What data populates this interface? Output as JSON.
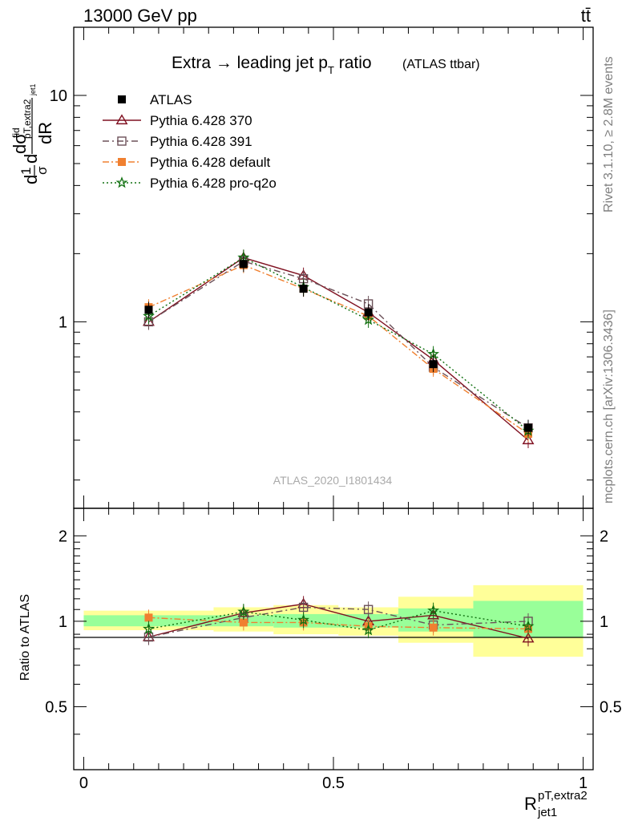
{
  "header": {
    "left": "13000 GeV pp",
    "right": "tt̄"
  },
  "side": {
    "top": "Rivet 3.1.10, ≥ 2.8M events",
    "bottom": "mcplots.cern.ch [arXiv:1306.3436]"
  },
  "watermark": "ATLAS_2020_I1801434",
  "colors": {
    "atlas": "#000000",
    "p370": "#7f1020",
    "p391": "#6b5058",
    "pdefault": "#f08030",
    "pq2o": "#107010",
    "band_inner": "#99ff99",
    "band_outer": "#ffff99"
  },
  "chart_data": [
    {
      "type": "scatter",
      "panel": "main",
      "title": "Extra → leading jet p",
      "title_sub": "T",
      "title_rest": " ratio",
      "title_note": "(ATLAS ttbar)",
      "ylabel": "dσ/dR",
      "yscale": "log",
      "ylim": [
        0.15,
        20
      ],
      "xlim": [
        -0.02,
        1.02
      ],
      "ytick_labels": [
        "1",
        "10"
      ],
      "x": [
        0.13,
        0.32,
        0.44,
        0.57,
        0.7,
        0.89
      ],
      "series": [
        {
          "name": "ATLAS",
          "values": [
            1.13,
            1.8,
            1.4,
            1.1,
            0.65,
            0.34
          ]
        },
        {
          "name": "Pythia 6.428 370",
          "values": [
            1.0,
            1.92,
            1.6,
            1.1,
            0.68,
            0.3
          ]
        },
        {
          "name": "Pythia 6.428 391",
          "values": [
            1.0,
            1.85,
            1.55,
            1.2,
            0.63,
            0.34
          ]
        },
        {
          "name": "Pythia 6.428 default",
          "values": [
            1.16,
            1.78,
            1.4,
            1.06,
            0.62,
            0.32
          ]
        },
        {
          "name": "Pythia 6.428 pro-q2o",
          "values": [
            1.06,
            1.92,
            1.42,
            1.02,
            0.72,
            0.33
          ]
        }
      ],
      "legend_position": "top-left"
    },
    {
      "type": "scatter",
      "panel": "ratio",
      "ylabel": "Ratio to ATLAS",
      "xlabel": "R",
      "xlabel_sub": "jet1",
      "xlabel_sup": "pT,extra2",
      "ylim": [
        0.3,
        2.5
      ],
      "xlim": [
        -0.02,
        1.02
      ],
      "ytick_labels": [
        "0.5",
        "1",
        "2"
      ],
      "xtick_labels": [
        "0",
        "0.5",
        "1"
      ],
      "bands": [
        {
          "x0": 0.0,
          "x1": 0.26,
          "inner": [
            0.96,
            1.05
          ],
          "outer": [
            0.93,
            1.09
          ]
        },
        {
          "x0": 0.26,
          "x1": 0.38,
          "inner": [
            0.96,
            1.05
          ],
          "outer": [
            0.92,
            1.12
          ]
        },
        {
          "x0": 0.38,
          "x1": 0.51,
          "inner": [
            0.95,
            1.06
          ],
          "outer": [
            0.9,
            1.14
          ]
        },
        {
          "x0": 0.51,
          "x1": 0.63,
          "inner": [
            0.95,
            1.06
          ],
          "outer": [
            0.89,
            1.12
          ]
        },
        {
          "x0": 0.63,
          "x1": 0.78,
          "inner": [
            0.92,
            1.11
          ],
          "outer": [
            0.84,
            1.22
          ]
        },
        {
          "x0": 0.78,
          "x1": 1.0,
          "inner": [
            0.88,
            1.18
          ],
          "outer": [
            0.75,
            1.34
          ]
        }
      ],
      "x": [
        0.13,
        0.32,
        0.44,
        0.57,
        0.7,
        0.89
      ],
      "series": [
        {
          "name": "Pythia 6.428 370",
          "values": [
            0.88,
            1.07,
            1.15,
            1.0,
            1.05,
            0.87
          ]
        },
        {
          "name": "Pythia 6.428 391",
          "values": [
            0.88,
            1.03,
            1.12,
            1.1,
            0.97,
            1.0
          ]
        },
        {
          "name": "Pythia 6.428 default",
          "values": [
            1.03,
            0.99,
            0.99,
            0.96,
            0.95,
            0.94
          ]
        },
        {
          "name": "Pythia 6.428 pro-q2o",
          "values": [
            0.94,
            1.08,
            1.01,
            0.93,
            1.09,
            0.96
          ]
        }
      ]
    }
  ]
}
